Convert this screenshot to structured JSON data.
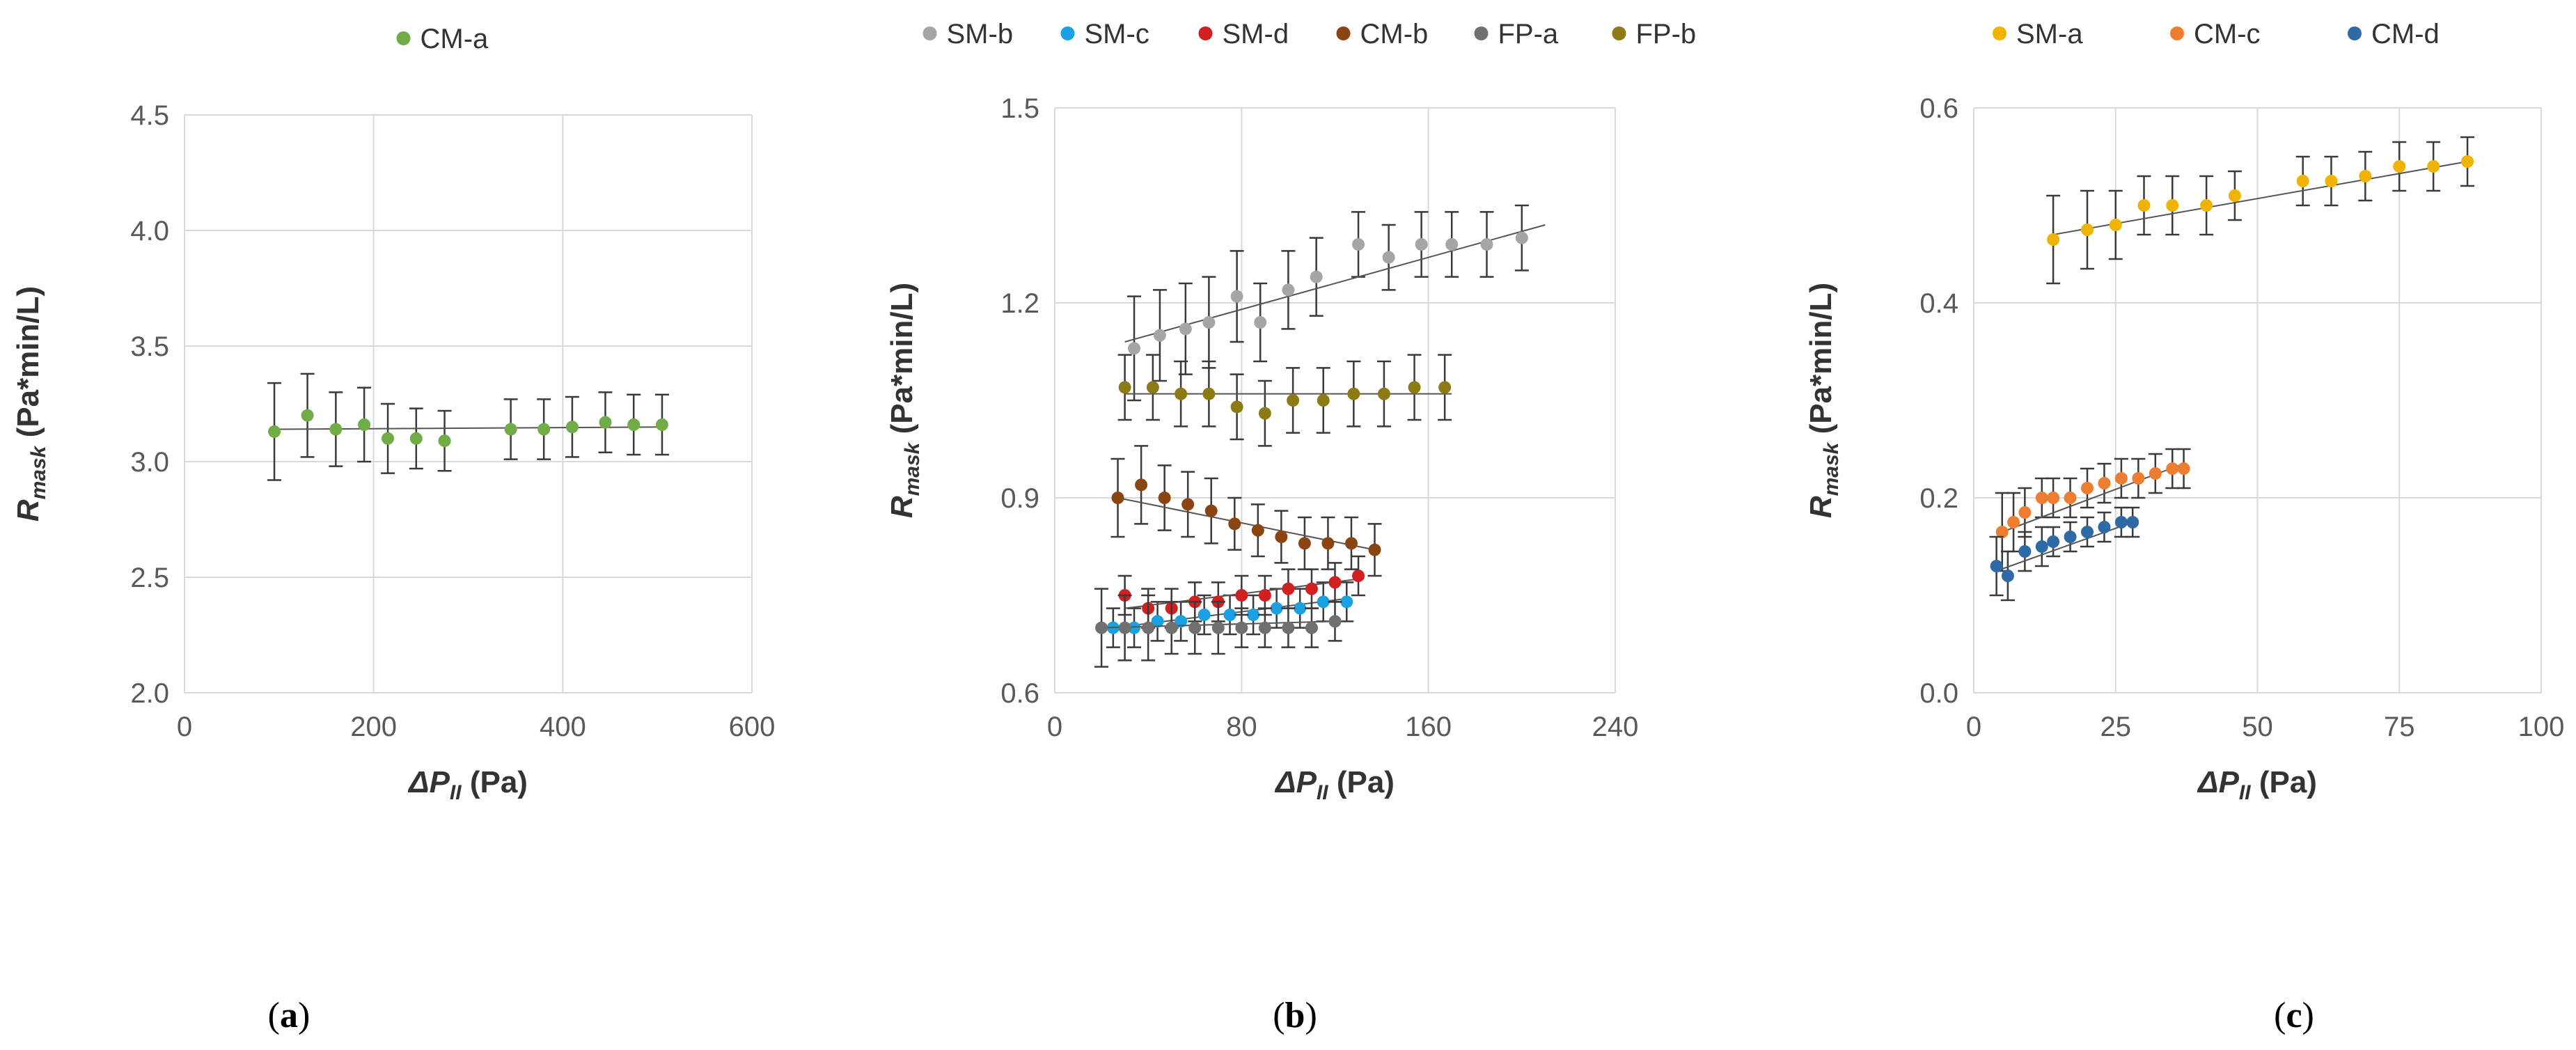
{
  "chart_data": [
    {
      "type": "scatter",
      "panel_label": "(a)",
      "panel_letter": "a",
      "xlabel": "ΔP",
      "xlabel_sub": "II",
      "xlabel_unit": " (Pa)",
      "ylabel": "R",
      "ylabel_sub": "mask",
      "ylabel_unit": " (Pa*min/L)",
      "xlim": [
        0,
        600
      ],
      "ylim": [
        2.0,
        4.5
      ],
      "xticks": [
        0,
        200,
        400,
        600
      ],
      "yticks": [
        2.0,
        2.5,
        3.0,
        3.5,
        4.0,
        4.5
      ],
      "xtick_labels": [
        "0",
        "200",
        "400",
        "600"
      ],
      "ytick_labels": [
        "2.0",
        "2.5",
        "3.0",
        "3.5",
        "4.0",
        "4.5"
      ],
      "grid": true,
      "legend_position": "top-center",
      "series": [
        {
          "name": "CM-a",
          "color": "#70ad47",
          "x": [
            95,
            130,
            160,
            190,
            215,
            245,
            275,
            345,
            380,
            410,
            445,
            475,
            505
          ],
          "y": [
            3.13,
            3.2,
            3.14,
            3.16,
            3.1,
            3.1,
            3.09,
            3.14,
            3.14,
            3.15,
            3.17,
            3.16,
            3.16
          ],
          "err": [
            0.21,
            0.18,
            0.16,
            0.16,
            0.15,
            0.13,
            0.13,
            0.13,
            0.13,
            0.13,
            0.13,
            0.13,
            0.13
          ],
          "trend": [
            [
              95,
              3.14
            ],
            [
              505,
              3.15
            ]
          ]
        }
      ]
    },
    {
      "type": "scatter",
      "panel_label": "(b)",
      "panel_letter": "b",
      "xlabel": "ΔP",
      "xlabel_sub": "II",
      "xlabel_unit": " (Pa)",
      "ylabel": "R",
      "ylabel_sub": "mask",
      "ylabel_unit": " (Pa*min/L)",
      "xlim": [
        0,
        240
      ],
      "ylim": [
        0.6,
        1.5
      ],
      "xticks": [
        0,
        80,
        160,
        240
      ],
      "yticks": [
        0.6,
        0.9,
        1.2,
        1.5
      ],
      "xtick_labels": [
        "0",
        "80",
        "160",
        "240"
      ],
      "ytick_labels": [
        "0.6",
        "0.9",
        "1.2",
        "1.5"
      ],
      "grid": true,
      "legend_position": "top-center",
      "series": [
        {
          "name": "SM-b",
          "color": "#a5a5a5",
          "x": [
            34,
            45,
            56,
            66,
            78,
            88,
            100,
            112,
            130,
            143,
            157,
            170,
            185,
            200
          ],
          "y": [
            1.13,
            1.15,
            1.16,
            1.17,
            1.21,
            1.17,
            1.22,
            1.24,
            1.29,
            1.27,
            1.29,
            1.29,
            1.29,
            1.3
          ],
          "err": [
            0.08,
            0.07,
            0.07,
            0.07,
            0.07,
            0.06,
            0.06,
            0.06,
            0.05,
            0.05,
            0.05,
            0.05,
            0.05,
            0.05
          ],
          "trend": [
            [
              30,
              1.14
            ],
            [
              210,
              1.32
            ]
          ]
        },
        {
          "name": "SM-c",
          "color": "#1ba1e2",
          "x": [
            25,
            34,
            44,
            54,
            64,
            75,
            85,
            95,
            105,
            115,
            125
          ],
          "y": [
            0.7,
            0.7,
            0.71,
            0.71,
            0.72,
            0.72,
            0.72,
            0.73,
            0.73,
            0.74,
            0.74
          ],
          "err": [
            0.03,
            0.03,
            0.03,
            0.03,
            0.03,
            0.03,
            0.03,
            0.03,
            0.03,
            0.03,
            0.03
          ],
          "trend": [
            [
              25,
              0.7
            ],
            [
              125,
              0.745
            ]
          ]
        },
        {
          "name": "SM-d",
          "color": "#d02020",
          "x": [
            30,
            40,
            50,
            60,
            70,
            80,
            90,
            100,
            110,
            120,
            130
          ],
          "y": [
            0.75,
            0.73,
            0.73,
            0.74,
            0.74,
            0.75,
            0.75,
            0.76,
            0.76,
            0.77,
            0.78
          ],
          "err": [
            0.03,
            0.03,
            0.03,
            0.03,
            0.03,
            0.03,
            0.03,
            0.03,
            0.03,
            0.03,
            0.03
          ],
          "trend": [
            [
              30,
              0.73
            ],
            [
              130,
              0.775
            ]
          ]
        },
        {
          "name": "CM-b",
          "color": "#8b4513",
          "x": [
            27,
            37,
            47,
            57,
            67,
            77,
            87,
            97,
            107,
            117,
            127,
            137
          ],
          "y": [
            0.9,
            0.92,
            0.9,
            0.89,
            0.88,
            0.86,
            0.85,
            0.84,
            0.83,
            0.83,
            0.83,
            0.82
          ],
          "err": [
            0.06,
            0.06,
            0.05,
            0.05,
            0.05,
            0.04,
            0.04,
            0.04,
            0.04,
            0.04,
            0.04,
            0.04
          ],
          "trend": [
            [
              27,
              0.9
            ],
            [
              137,
              0.82
            ]
          ]
        },
        {
          "name": "FP-a",
          "color": "#707070",
          "x": [
            20,
            30,
            40,
            50,
            60,
            70,
            80,
            90,
            100,
            110,
            120
          ],
          "y": [
            0.7,
            0.7,
            0.7,
            0.7,
            0.7,
            0.7,
            0.7,
            0.7,
            0.7,
            0.7,
            0.71
          ],
          "err": [
            0.06,
            0.05,
            0.05,
            0.04,
            0.04,
            0.04,
            0.03,
            0.03,
            0.03,
            0.03,
            0.03
          ],
          "trend": [
            [
              20,
              0.7
            ],
            [
              120,
              0.71
            ]
          ]
        },
        {
          "name": "FP-b",
          "color": "#8c7a16",
          "x": [
            30,
            42,
            54,
            66,
            78,
            90,
            102,
            115,
            128,
            141,
            154,
            167
          ],
          "y": [
            1.07,
            1.07,
            1.06,
            1.06,
            1.04,
            1.03,
            1.05,
            1.05,
            1.06,
            1.06,
            1.07,
            1.07
          ],
          "err": [
            0.05,
            0.05,
            0.05,
            0.05,
            0.05,
            0.05,
            0.05,
            0.05,
            0.05,
            0.05,
            0.05,
            0.05
          ],
          "trend": [
            [
              30,
              1.06
            ],
            [
              170,
              1.06
            ]
          ]
        }
      ]
    },
    {
      "type": "scatter",
      "panel_label": "(c)",
      "panel_letter": "c",
      "xlabel": "ΔP",
      "xlabel_sub": "II",
      "xlabel_unit": " (Pa)",
      "ylabel": "R",
      "ylabel_sub": "mask",
      "ylabel_unit": " (Pa*min/L)",
      "xlim": [
        0,
        100
      ],
      "ylim": [
        0.0,
        0.6
      ],
      "xticks": [
        0,
        25,
        50,
        75,
        100
      ],
      "yticks": [
        0.0,
        0.2,
        0.4,
        0.6
      ],
      "xtick_labels": [
        "0",
        "25",
        "50",
        "75",
        "100"
      ],
      "ytick_labels": [
        "0.0",
        "0.2",
        "0.4",
        "0.6"
      ],
      "grid": true,
      "legend_position": "top-center",
      "series": [
        {
          "name": "SM-a",
          "color": "#f0b400",
          "x": [
            14,
            20,
            25,
            30,
            35,
            41,
            46,
            58,
            63,
            69,
            75,
            81,
            87
          ],
          "y": [
            0.465,
            0.475,
            0.48,
            0.5,
            0.5,
            0.5,
            0.51,
            0.525,
            0.525,
            0.53,
            0.54,
            0.54,
            0.545
          ],
          "err": [
            0.045,
            0.04,
            0.035,
            0.03,
            0.03,
            0.03,
            0.025,
            0.025,
            0.025,
            0.025,
            0.025,
            0.025,
            0.025
          ],
          "trend": [
            [
              14,
              0.47
            ],
            [
              87,
              0.545
            ]
          ]
        },
        {
          "name": "CM-c",
          "color": "#ed7d31",
          "x": [
            5,
            7,
            9,
            12,
            14,
            17,
            20,
            23,
            26,
            29,
            32,
            35,
            37
          ],
          "y": [
            0.165,
            0.175,
            0.185,
            0.2,
            0.2,
            0.2,
            0.21,
            0.215,
            0.22,
            0.22,
            0.225,
            0.23,
            0.23
          ],
          "err": [
            0.04,
            0.03,
            0.025,
            0.02,
            0.02,
            0.02,
            0.02,
            0.02,
            0.02,
            0.02,
            0.02,
            0.02,
            0.02
          ],
          "trend": [
            [
              5,
              0.165
            ],
            [
              37,
              0.235
            ]
          ]
        },
        {
          "name": "CM-d",
          "color": "#2e6aa6",
          "x": [
            4,
            6,
            9,
            12,
            14,
            17,
            20,
            23,
            26,
            28
          ],
          "y": [
            0.13,
            0.12,
            0.145,
            0.15,
            0.155,
            0.16,
            0.165,
            0.17,
            0.175,
            0.175
          ],
          "err": [
            0.03,
            0.025,
            0.02,
            0.02,
            0.015,
            0.015,
            0.015,
            0.015,
            0.015,
            0.015
          ],
          "trend": [
            [
              4,
              0.125
            ],
            [
              28,
              0.175
            ]
          ]
        }
      ]
    }
  ]
}
